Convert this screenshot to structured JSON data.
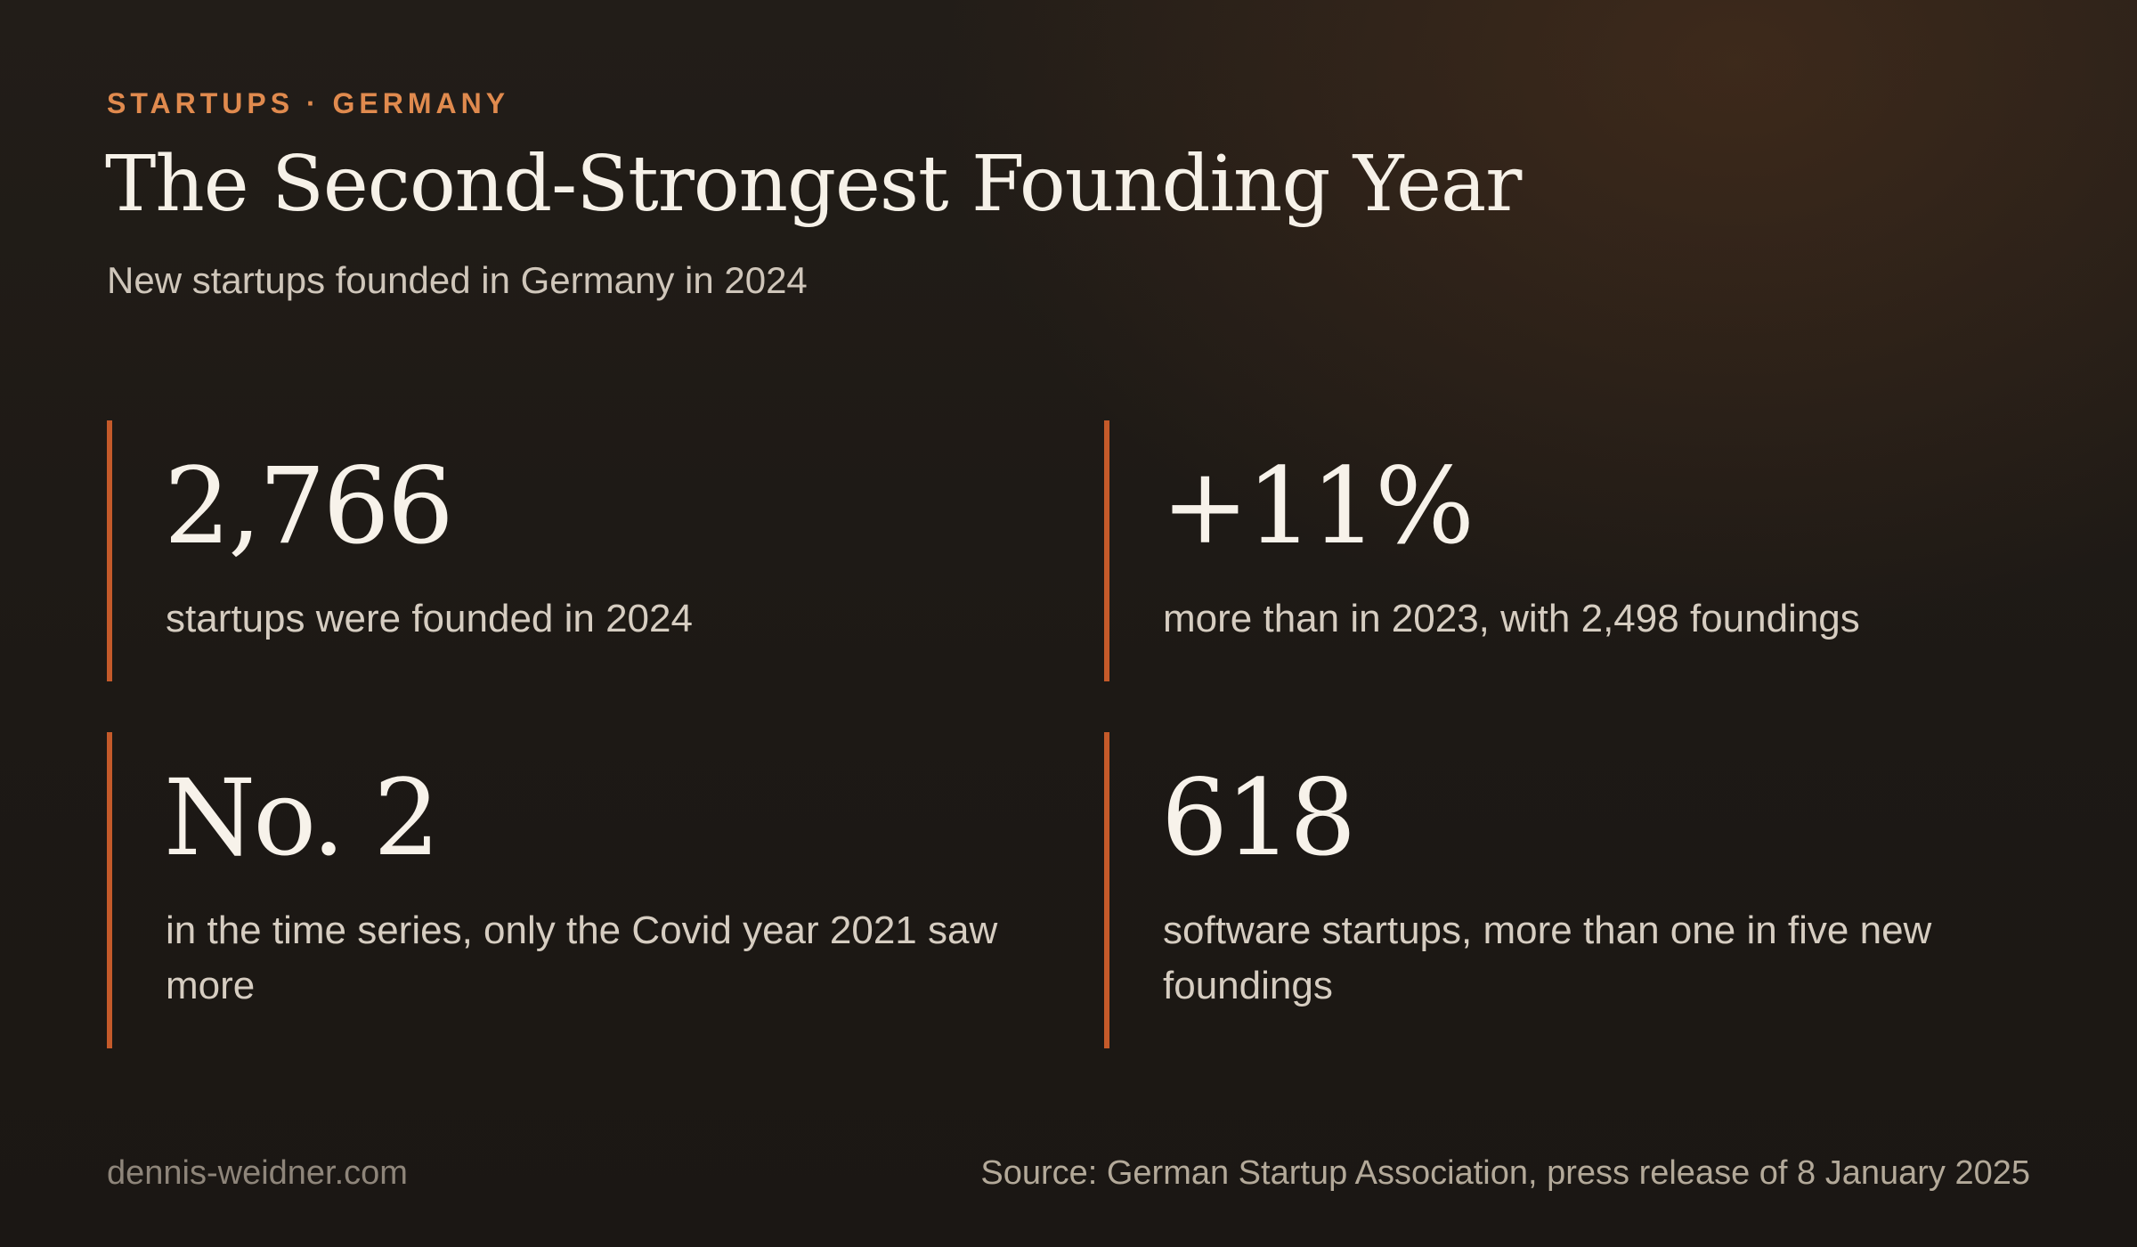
{
  "header": {
    "eyebrow": "STARTUPS · GERMANY",
    "title": "The Second-Strongest Founding Year",
    "subtitle": "New startups founded in Germany in 2024"
  },
  "stats": [
    {
      "value": "2,766",
      "label": "startups were founded in 2024"
    },
    {
      "value": "+11%",
      "label": "more than in 2023, with 2,498 foundings"
    },
    {
      "value": "No. 2",
      "label": "in the time series, only the Covid year 2021 saw more"
    },
    {
      "value": "618",
      "label": "software startups, more than one in five new foundings"
    }
  ],
  "footer": {
    "site": "dennis-weidner.com",
    "source": "Source: German Startup Association, press release of 8 January 2025"
  },
  "colors": {
    "accent": "#c45a2a",
    "eyebrow": "#e08a4e",
    "background": "#1d1915",
    "text": "#f6f1e8"
  }
}
